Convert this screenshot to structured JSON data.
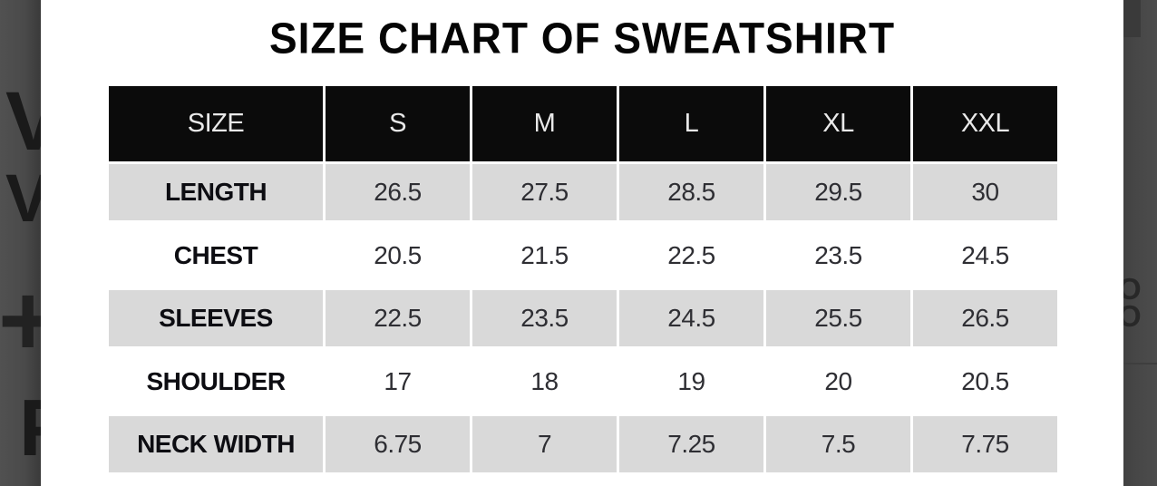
{
  "chart_data": {
    "type": "table",
    "title": "SIZE CHART OF SWEATSHIRT",
    "columns": [
      "SIZE",
      "S",
      "M",
      "L",
      "XL",
      "XXL"
    ],
    "rows": [
      {
        "label": "LENGTH",
        "values": [
          "26.5",
          "27.5",
          "28.5",
          "29.5",
          "30"
        ]
      },
      {
        "label": "CHEST",
        "values": [
          "20.5",
          "21.5",
          "22.5",
          "23.5",
          "24.5"
        ]
      },
      {
        "label": "SLEEVES",
        "values": [
          "22.5",
          "23.5",
          "24.5",
          "25.5",
          "26.5"
        ]
      },
      {
        "label": "SHOULDER",
        "values": [
          "17",
          "18",
          "19",
          "20",
          "20.5"
        ]
      },
      {
        "label": "NECK WIDTH",
        "values": [
          "6.75",
          "7",
          "7.25",
          "7.5",
          "7.75"
        ]
      }
    ],
    "layout_hints": {
      "header_style": "black cells, white text",
      "alternating_rows": "gray / white",
      "grid": "white gaps between cells"
    }
  },
  "overlay": {
    "left_fragments": [
      "V",
      "V",
      "+",
      "P"
    ],
    "right_fragments": [
      "O",
      "O"
    ]
  },
  "colors": {
    "header_bg": "#0b0b0b",
    "header_fg": "#e9e9e9",
    "alt_row_bg": "#d9d9d9",
    "page_bg": "#ffffff",
    "overlay_strip": "#4a4a4a",
    "title_fg": "#050505"
  }
}
